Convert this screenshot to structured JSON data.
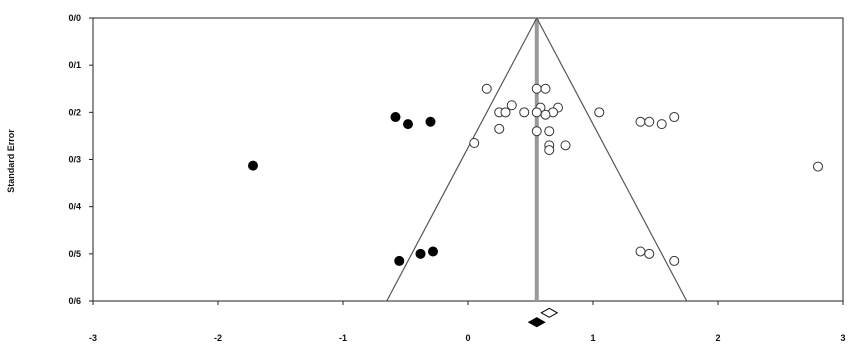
{
  "chart_data": {
    "type": "scatter",
    "title": "",
    "xlabel": "",
    "ylabel": "Standard Error",
    "xlim": [
      -3,
      3
    ],
    "ylim": [
      0,
      0.6
    ],
    "y_reversed": true,
    "grid": false,
    "legend": "none",
    "x_ticks": [
      "-3",
      "-2",
      "-1",
      "0",
      "1",
      "2",
      "3"
    ],
    "y_ticks": [
      "0/0",
      "0/1",
      "0/2",
      "0/3",
      "0/4",
      "0/5",
      "0/6"
    ],
    "funnel": {
      "center": 0.55,
      "apex_se": 0,
      "base_se": 0.6,
      "base_left": -0.65,
      "base_right": 1.75
    },
    "series": [
      {
        "marker": "open-circle",
        "color": "#333333",
        "points": [
          [
            0.15,
            0.15
          ],
          [
            0.55,
            0.15
          ],
          [
            0.62,
            0.15
          ],
          [
            0.35,
            0.185
          ],
          [
            0.58,
            0.19
          ],
          [
            0.72,
            0.19
          ],
          [
            0.25,
            0.2
          ],
          [
            0.3,
            0.2
          ],
          [
            0.45,
            0.2
          ],
          [
            0.55,
            0.2
          ],
          [
            0.68,
            0.2
          ],
          [
            1.05,
            0.2
          ],
          [
            0.62,
            0.205
          ],
          [
            1.38,
            0.22
          ],
          [
            1.45,
            0.22
          ],
          [
            1.55,
            0.225
          ],
          [
            1.65,
            0.21
          ],
          [
            0.25,
            0.235
          ],
          [
            0.55,
            0.24
          ],
          [
            0.65,
            0.24
          ],
          [
            0.05,
            0.265
          ],
          [
            0.65,
            0.27
          ],
          [
            0.78,
            0.27
          ],
          [
            0.65,
            0.28
          ],
          [
            2.8,
            0.315
          ],
          [
            1.38,
            0.495
          ],
          [
            1.45,
            0.5
          ],
          [
            1.65,
            0.515
          ]
        ]
      },
      {
        "marker": "filled-circle",
        "color": "#000000",
        "points": [
          [
            -0.58,
            0.21
          ],
          [
            -0.48,
            0.225
          ],
          [
            -0.3,
            0.22
          ],
          [
            -1.72,
            0.313
          ],
          [
            -0.55,
            0.515
          ],
          [
            -0.38,
            0.5
          ],
          [
            -0.28,
            0.495
          ]
        ]
      }
    ],
    "summary_markers": [
      {
        "marker": "open-diamond",
        "x": 0.65,
        "y": 0.625
      },
      {
        "marker": "filled-diamond",
        "x": 0.55,
        "y": 0.645
      }
    ]
  }
}
